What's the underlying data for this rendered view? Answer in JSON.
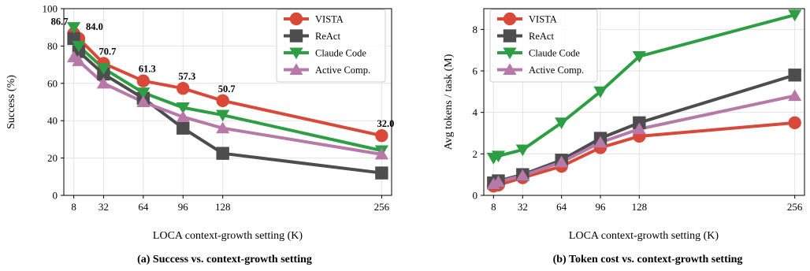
{
  "chart_data": [
    {
      "type": "line",
      "caption": "(a) Success vs. context-growth setting",
      "xlabel": "LOCA context-growth setting (K)",
      "ylabel": "Success (%)",
      "xlim": [
        0,
        264
      ],
      "ylim": [
        0,
        100
      ],
      "xticks": [
        8,
        32,
        64,
        96,
        128,
        256
      ],
      "yticks": [
        0,
        20,
        40,
        60,
        80,
        100
      ],
      "grid": true,
      "legend": "top-right",
      "series": [
        {
          "name": "VISTA",
          "color": "#d9493a",
          "marker": "circle",
          "x": [
            8,
            12,
            32,
            64,
            96,
            128,
            256
          ],
          "y": [
            86.7,
            84.0,
            70.7,
            61.3,
            57.3,
            50.7,
            32.0
          ],
          "labels": [
            "86.7",
            "84.0",
            "70.7",
            "61.3",
            "57.3",
            "50.7",
            "32.0"
          ]
        },
        {
          "name": "ReAct",
          "color": "#4d4d4d",
          "marker": "square",
          "x": [
            8,
            12,
            32,
            64,
            96,
            128,
            256
          ],
          "y": [
            84.0,
            77.0,
            65.0,
            52.0,
            36.0,
            22.5,
            12.0
          ]
        },
        {
          "name": "Claude Code",
          "color": "#2e9e44",
          "marker": "triangle-down",
          "x": [
            8,
            12,
            32,
            64,
            96,
            128,
            256
          ],
          "y": [
            90.0,
            80.0,
            68.0,
            55.0,
            47.0,
            43.0,
            24.0
          ]
        },
        {
          "name": "Active Comp.",
          "color": "#b679a8",
          "marker": "triangle-up",
          "x": [
            8,
            12,
            32,
            64,
            96,
            128,
            256
          ],
          "y": [
            74.0,
            72.0,
            60.0,
            50.0,
            42.0,
            36.0,
            22.0
          ]
        }
      ]
    },
    {
      "type": "line",
      "caption": "(b) Token cost vs. context-growth setting",
      "xlabel": "LOCA context-growth setting (K)",
      "ylabel": "Avg tokens / task (M)",
      "xlim": [
        0,
        264
      ],
      "ylim": [
        0,
        9.0
      ],
      "xticks": [
        8,
        32,
        64,
        96,
        128,
        256
      ],
      "yticks": [
        0,
        2,
        4,
        6,
        8
      ],
      "grid": true,
      "legend": "top-left",
      "series": [
        {
          "name": "VISTA",
          "color": "#d9493a",
          "marker": "circle",
          "x": [
            8,
            12,
            32,
            64,
            96,
            128,
            256
          ],
          "y": [
            0.45,
            0.5,
            0.85,
            1.4,
            2.3,
            2.85,
            3.5
          ]
        },
        {
          "name": "ReAct",
          "color": "#4d4d4d",
          "marker": "square",
          "x": [
            8,
            12,
            32,
            64,
            96,
            128,
            256
          ],
          "y": [
            0.6,
            0.7,
            1.0,
            1.7,
            2.75,
            3.5,
            5.8
          ]
        },
        {
          "name": "Claude Code",
          "color": "#2e9e44",
          "marker": "triangle-down",
          "x": [
            8,
            12,
            32,
            64,
            96,
            128,
            256
          ],
          "y": [
            1.8,
            1.9,
            2.2,
            3.5,
            5.0,
            6.7,
            8.7
          ]
        },
        {
          "name": "Active Comp.",
          "color": "#b679a8",
          "marker": "triangle-up",
          "x": [
            8,
            12,
            32,
            64,
            96,
            128,
            256
          ],
          "y": [
            0.55,
            0.65,
            0.95,
            1.6,
            2.55,
            3.2,
            4.8
          ]
        }
      ]
    }
  ]
}
